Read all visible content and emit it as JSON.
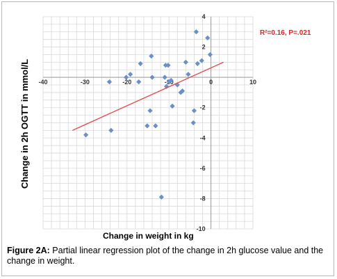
{
  "chart_data": {
    "type": "scatter",
    "xlabel": "Change in weight in kg",
    "ylabel": "Change in 2h OGTT in mmol/L",
    "xlim": [
      -40,
      10
    ],
    "ylim": [
      -10,
      4
    ],
    "x_ticks": [
      -40,
      -30,
      -20,
      -10,
      0,
      10
    ],
    "y_ticks": [
      4,
      2,
      -2,
      -4,
      -6,
      -8,
      -10
    ],
    "grid": true,
    "marker_color": "#6a8fc9",
    "line_color": "#e05050",
    "annotation": "R²=0.16, P=.021",
    "regression_line": {
      "x": [
        -33,
        3
      ],
      "y": [
        -3.5,
        1.0
      ]
    },
    "points": [
      {
        "x": -29.8,
        "y": -3.8
      },
      {
        "x": -23.8,
        "y": -3.5
      },
      {
        "x": -24.2,
        "y": -0.3
      },
      {
        "x": -20.2,
        "y": 0.0
      },
      {
        "x": -19.2,
        "y": 0.2
      },
      {
        "x": -16.8,
        "y": 0.9
      },
      {
        "x": -17.2,
        "y": -0.3
      },
      {
        "x": -14.2,
        "y": 1.4
      },
      {
        "x": -14.0,
        "y": 0.0
      },
      {
        "x": -14.5,
        "y": -2.2
      },
      {
        "x": -15.2,
        "y": -3.2
      },
      {
        "x": -13.2,
        "y": -3.2
      },
      {
        "x": -11.8,
        "y": -7.9
      },
      {
        "x": -10.8,
        "y": 0.8
      },
      {
        "x": -10.2,
        "y": 0.8
      },
      {
        "x": -11.0,
        "y": 0.0
      },
      {
        "x": -10.0,
        "y": -0.3
      },
      {
        "x": -9.5,
        "y": -0.2
      },
      {
        "x": -10.6,
        "y": -0.6
      },
      {
        "x": -9.2,
        "y": -1.9
      },
      {
        "x": -8.0,
        "y": -0.5
      },
      {
        "x": -7.2,
        "y": -1.0
      },
      {
        "x": -6.8,
        "y": -0.9
      },
      {
        "x": -6.0,
        "y": 1.0
      },
      {
        "x": -5.4,
        "y": 0.2
      },
      {
        "x": -4.2,
        "y": -3.0
      },
      {
        "x": -4.0,
        "y": -2.2
      },
      {
        "x": -3.2,
        "y": 0.9
      },
      {
        "x": -3.5,
        "y": 3.0
      },
      {
        "x": -2.2,
        "y": 1.1
      },
      {
        "x": -0.8,
        "y": 2.6
      },
      {
        "x": -0.2,
        "y": 1.5
      }
    ]
  },
  "caption": {
    "label": "Figure 2A:",
    "text": " Partial linear regression plot of the change in 2h glucose value and the change in weight."
  }
}
